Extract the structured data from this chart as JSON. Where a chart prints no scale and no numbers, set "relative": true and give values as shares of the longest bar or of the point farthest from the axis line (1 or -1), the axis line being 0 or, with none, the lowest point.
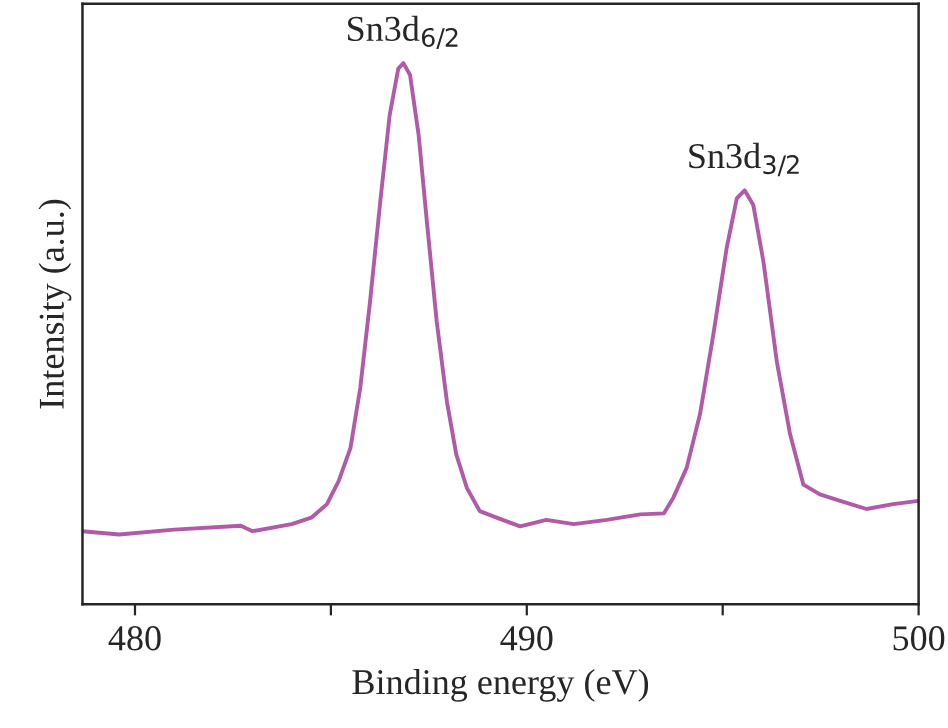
{
  "chart_data": {
    "type": "line",
    "relative": true,
    "xlabel": "Binding energy (eV)",
    "ylabel": "Intensity (a.u.)",
    "xlim": [
      478.66,
      500
    ],
    "xticks": [
      480,
      {
        "value": 485,
        "label": null
      },
      490,
      {
        "value": 495,
        "label": null
      },
      500
    ],
    "x": [
      478.66,
      479.6,
      481.0,
      482.7,
      483.0,
      484.0,
      484.5,
      484.9,
      485.2,
      485.5,
      485.75,
      486.0,
      486.26,
      486.5,
      486.72,
      486.85,
      487.02,
      487.24,
      487.45,
      487.7,
      487.96,
      488.2,
      488.47,
      488.8,
      489.23,
      489.83,
      490.5,
      491.2,
      492.04,
      492.9,
      493.5,
      493.74,
      494.08,
      494.42,
      494.76,
      495.1,
      495.36,
      495.56,
      495.78,
      496.04,
      496.38,
      496.72,
      497.06,
      497.48,
      498.0,
      498.67,
      499.35,
      500.0
    ],
    "series": [
      {
        "color": "#b05aa8",
        "values": [
          0.135,
          0.129,
          0.138,
          0.145,
          0.135,
          0.148,
          0.16,
          0.185,
          0.228,
          0.289,
          0.4,
          0.56,
          0.744,
          0.904,
          0.99,
          1.0,
          0.978,
          0.867,
          0.707,
          0.523,
          0.375,
          0.277,
          0.215,
          0.172,
          0.16,
          0.144,
          0.156,
          0.148,
          0.156,
          0.166,
          0.168,
          0.197,
          0.252,
          0.351,
          0.498,
          0.658,
          0.75,
          0.765,
          0.738,
          0.633,
          0.449,
          0.314,
          0.221,
          0.203,
          0.191,
          0.176,
          0.185,
          0.191
        ]
      }
    ],
    "annotations": [
      {
        "text": "Sn3d$_{6/2}$",
        "x": 486.85,
        "y": 1.0
      },
      {
        "text": "Sn3d$_{3/2}$",
        "x": 495.56,
        "y": 0.765
      }
    ],
    "grid": false,
    "legend": false,
    "marker": "none",
    "line_style": "solid"
  }
}
